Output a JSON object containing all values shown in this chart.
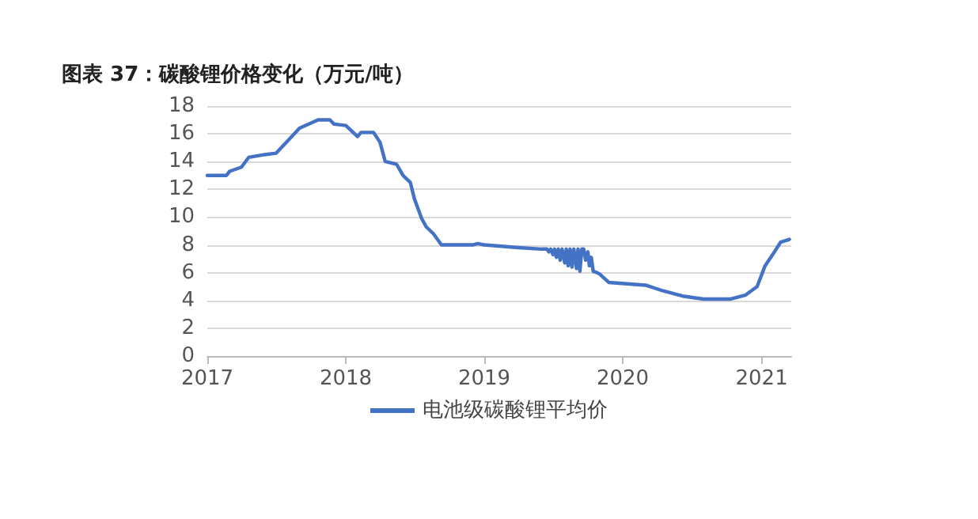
{
  "chart_data": {
    "type": "line",
    "title": "图表 37：碳酸锂价格变化（万元/吨）",
    "series": [
      {
        "name": "电池级碳酸锂平均价",
        "color": "#4472c4",
        "x": [
          "2017-01-01",
          "2017-02-20",
          "2017-03-01",
          "2017-04-01",
          "2017-04-20",
          "2017-06-01",
          "2017-07-01",
          "2017-08-01",
          "2017-09-01",
          "2017-10-20",
          "2017-11-20",
          "2017-12-01",
          "2018-01-01",
          "2018-02-01",
          "2018-02-10",
          "2018-03-15",
          "2018-04-01",
          "2018-04-15",
          "2018-05-15",
          "2018-06-01",
          "2018-06-20",
          "2018-07-01",
          "2018-07-20",
          "2018-08-01",
          "2018-08-20",
          "2018-09-10",
          "2018-12-01",
          "2018-12-15",
          "2019-01-01",
          "2019-04-01",
          "2019-06-01",
          "2019-06-15",
          "2019-06-20",
          "2019-06-25",
          "2019-07-01",
          "2019-07-05",
          "2019-07-10",
          "2019-07-15",
          "2019-07-20",
          "2019-07-25",
          "2019-08-01",
          "2019-08-05",
          "2019-08-10",
          "2019-08-15",
          "2019-08-20",
          "2019-08-25",
          "2019-09-01",
          "2019-09-05",
          "2019-09-10",
          "2019-09-15",
          "2019-09-20",
          "2019-09-25",
          "2019-10-01",
          "2019-10-05",
          "2019-10-10",
          "2019-10-15",
          "2019-10-25",
          "2019-11-01",
          "2019-11-25",
          "2020-03-01",
          "2020-04-15",
          "2020-06-10",
          "2020-08-01",
          "2020-10-10",
          "2020-11-20",
          "2020-12-20",
          "2021-01-10",
          "2021-01-30",
          "2021-02-20",
          "2021-03-15"
        ],
        "values": [
          13.0,
          13.0,
          13.3,
          13.6,
          14.3,
          14.5,
          14.6,
          15.5,
          16.4,
          17.0,
          17.0,
          16.7,
          16.6,
          15.8,
          16.1,
          16.1,
          15.4,
          14.0,
          13.8,
          13.0,
          12.5,
          11.3,
          9.9,
          9.3,
          8.8,
          8.0,
          8.0,
          8.1,
          8.0,
          7.8,
          7.7,
          7.7,
          7.5,
          7.7,
          7.3,
          7.7,
          7.1,
          7.7,
          6.9,
          7.7,
          6.7,
          7.7,
          6.5,
          7.7,
          6.4,
          7.7,
          6.3,
          7.7,
          6.1,
          7.7,
          7.7,
          6.9,
          7.5,
          6.5,
          7.1,
          6.1,
          6.0,
          5.9,
          5.3,
          5.1,
          4.7,
          4.3,
          4.1,
          4.1,
          4.4,
          5.0,
          6.5,
          7.3,
          8.2,
          8.4
        ]
      }
    ],
    "xlim": [
      "2017-01-01",
      "2021-03-20"
    ],
    "xticks": [
      "2017",
      "2018",
      "2019",
      "2020",
      "2021"
    ],
    "ylim": [
      0,
      18
    ],
    "yticks": [
      0,
      2,
      4,
      6,
      8,
      10,
      12,
      14,
      16,
      18
    ],
    "grid": "y",
    "legend": "bottom",
    "marker": "none",
    "line_style": "solid"
  }
}
